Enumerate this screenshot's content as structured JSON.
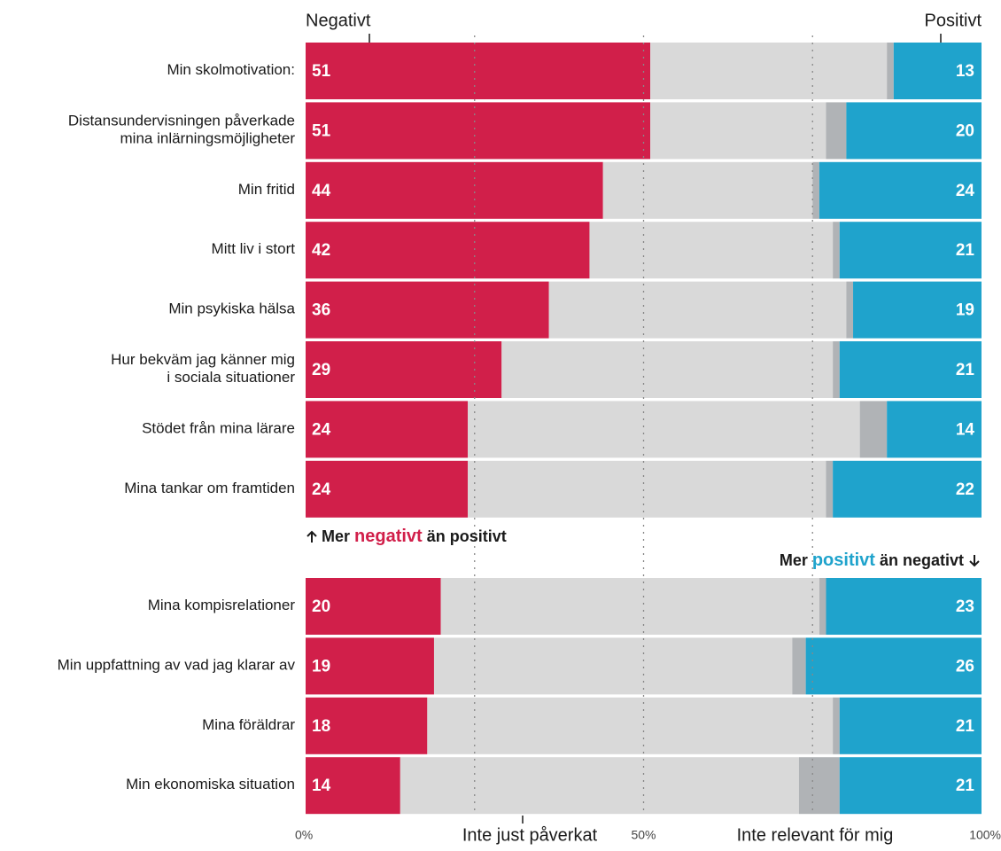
{
  "chart_data": {
    "type": "stacked-bar",
    "orientation": "horizontal",
    "categories": [
      "Min skolmotivation:",
      "Distansundervisningen påverkade\nmina inlärningsmöjligheter",
      "Min fritid",
      "Mitt liv i stort",
      "Min psykiska hälsa",
      "Hur bekväm jag känner mig\ni sociala situationer",
      "Stödet från mina lärare",
      "Mina tankar om framtiden",
      "Mina kompisrelationer",
      "Min uppfattning av vad jag klarar av",
      "Mina föräldrar",
      "Min ekonomiska situation"
    ],
    "series": [
      {
        "name": "Negativt",
        "color": "#d11f4a",
        "values": [
          51,
          51,
          44,
          42,
          36,
          29,
          24,
          24,
          20,
          19,
          18,
          14
        ],
        "show_labels": true
      },
      {
        "name": "Inte just påverkat",
        "color": "#d9d9d9",
        "values": [
          35,
          26,
          31,
          36,
          44,
          49,
          58,
          53,
          56,
          53,
          60,
          59
        ],
        "show_labels": false
      },
      {
        "name": "Inte relevant för mig",
        "color": "#b0b3b6",
        "values": [
          1,
          3,
          1,
          1,
          1,
          1,
          4,
          1,
          1,
          2,
          1,
          6
        ],
        "show_labels": false
      },
      {
        "name": "Positivt",
        "color": "#1fa3cc",
        "values": [
          13,
          20,
          24,
          21,
          19,
          21,
          14,
          22,
          23,
          26,
          21,
          21
        ],
        "show_labels": true
      }
    ],
    "xlim": [
      0,
      100
    ],
    "xticks": [
      {
        "value": 0,
        "label": "0%"
      },
      {
        "value": 50,
        "label": "50%"
      },
      {
        "value": 100,
        "label": "100%"
      }
    ],
    "gridlines": [
      25,
      50,
      75
    ],
    "annotations": [
      {
        "parts": [
          "Mer",
          "negativt",
          "än positivt"
        ],
        "highlight_color": "#d11f4a"
      },
      {
        "parts": [
          "Mer",
          "positivt",
          "än negativt"
        ],
        "highlight_color": "#1fa3cc"
      }
    ]
  }
}
